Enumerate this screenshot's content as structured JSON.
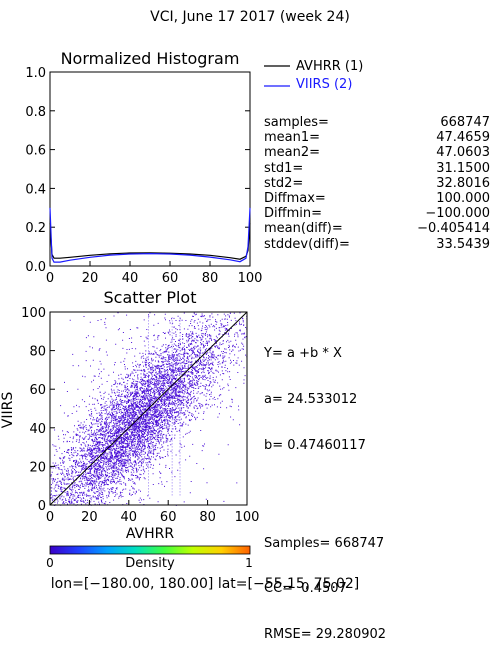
{
  "title": "VCI,  June 17 2017 (week 24)",
  "histogram": {
    "title": "Normalized Histogram",
    "legend": [
      {
        "label": "AVHRR (1)",
        "color": "#000000"
      },
      {
        "label": "VIIRS (2)",
        "color": "#1a1aff"
      }
    ],
    "yticks": [
      "0.0",
      "0.2",
      "0.4",
      "0.6",
      "0.8",
      "1.0"
    ],
    "xticks": [
      "0",
      "20",
      "40",
      "60",
      "80",
      "100"
    ]
  },
  "stats": [
    {
      "label": "samples=",
      "value": "668747"
    },
    {
      "label": "mean1=",
      "value": "47.4659"
    },
    {
      "label": "mean2=",
      "value": "47.0603"
    },
    {
      "label": "std1=",
      "value": "31.1500"
    },
    {
      "label": "std2=",
      "value": "32.8016"
    },
    {
      "label": "Diffmax=",
      "value": "100.000"
    },
    {
      "label": "Diffmin=",
      "value": "−100.000"
    },
    {
      "label": "mean(diff)=",
      "value": "−0.405414"
    },
    {
      "label": "stddev(diff)=",
      "value": "33.5439"
    }
  ],
  "scatter": {
    "title": "Scatter Plot",
    "xlabel": "AVHRR",
    "ylabel": "VIIRS",
    "yticks": [
      "0",
      "20",
      "40",
      "60",
      "80",
      "100"
    ],
    "xticks": [
      "0",
      "20",
      "40",
      "60",
      "80",
      "100"
    ]
  },
  "fit": {
    "equation": "Y= a +b * X",
    "a": "a= 24.533012",
    "b": "b= 0.47460117",
    "samples": "Samples= 668747",
    "cc": "CC=  0.4507",
    "rmse": "RMSE= 29.280902"
  },
  "colorbar": {
    "label": "Density",
    "min": "0",
    "max": "1",
    "colors": [
      "#3a00c8",
      "#2040ff",
      "#00a0ff",
      "#00e0c0",
      "#40ff40",
      "#c0ff00",
      "#ffd000",
      "#ff6000"
    ]
  },
  "footer": "lon=[−180.00, 180.00] lat=[−55.15, 75.02]",
  "chart_data": [
    {
      "type": "line",
      "title": "Normalized Histogram",
      "xlim": [
        0,
        100
      ],
      "ylim": [
        0,
        1
      ],
      "x": [
        0,
        1,
        2,
        5,
        10,
        20,
        30,
        40,
        50,
        60,
        70,
        80,
        90,
        95,
        98,
        99,
        100
      ],
      "series": [
        {
          "name": "AVHRR (1)",
          "values": [
            0.22,
            0.06,
            0.04,
            0.04,
            0.045,
            0.055,
            0.063,
            0.067,
            0.068,
            0.066,
            0.062,
            0.055,
            0.043,
            0.035,
            0.05,
            0.08,
            0.22
          ]
        },
        {
          "name": "VIIRS (2)",
          "values": [
            0.3,
            0.04,
            0.02,
            0.02,
            0.03,
            0.045,
            0.056,
            0.062,
            0.064,
            0.062,
            0.056,
            0.046,
            0.032,
            0.022,
            0.04,
            0.1,
            0.3
          ]
        }
      ]
    },
    {
      "type": "scatter",
      "title": "Scatter Plot",
      "xlabel": "AVHRR",
      "ylabel": "VIIRS",
      "xlim": [
        0,
        100
      ],
      "ylim": [
        0,
        100
      ],
      "fit_line": {
        "a": 24.533012,
        "b": 0.47460117
      },
      "samples": 668747
    }
  ]
}
